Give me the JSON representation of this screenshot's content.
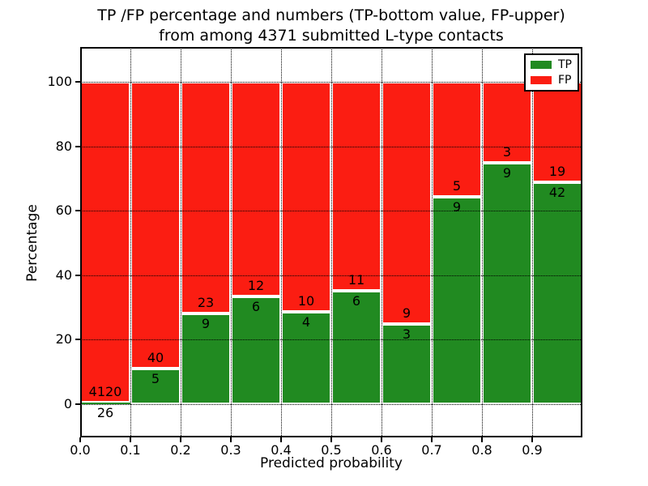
{
  "figure": {
    "title_line1": "TP /FP percentage and numbers (TP-bottom value, FP-upper)",
    "title_line2": "from among 4371 submitted L-type contacts",
    "xlabel": "Predicted probability",
    "ylabel": "Percentage"
  },
  "legend": {
    "items": [
      {
        "label": "TP",
        "color": "#218a21"
      },
      {
        "label": "FP",
        "color": "#fb1d12"
      }
    ],
    "position": "upper right"
  },
  "chart_data": {
    "type": "bar",
    "stacked": true,
    "normalized_to_percent": true,
    "title": "TP /FP percentage and numbers (TP-bottom value, FP-upper) from among 4371 submitted L-type contacts",
    "xlabel": "Predicted probability",
    "ylabel": "Percentage",
    "total_submitted": 4371,
    "bin_width": 0.1,
    "bin_starts": [
      0.0,
      0.1,
      0.2,
      0.3,
      0.4,
      0.5,
      0.6,
      0.7,
      0.8,
      0.9
    ],
    "series": [
      {
        "name": "TP",
        "color": "#218a21",
        "counts": [
          26,
          5,
          9,
          6,
          4,
          6,
          3,
          9,
          9,
          42
        ]
      },
      {
        "name": "FP",
        "color": "#fb1d12",
        "counts": [
          4120,
          40,
          23,
          12,
          10,
          11,
          9,
          5,
          3,
          19
        ]
      }
    ],
    "tp_percent_of_bin": [
      0.63,
      11.11,
      28.13,
      33.33,
      28.57,
      35.29,
      25.0,
      64.29,
      75.0,
      68.85
    ],
    "x_tick_labels": [
      "0.0",
      "0.1",
      "0.2",
      "0.3",
      "0.4",
      "0.5",
      "0.6",
      "0.7",
      "0.8",
      "0.9"
    ],
    "y_tick_labels": [
      "0",
      "20",
      "40",
      "60",
      "80",
      "100"
    ],
    "y_ticks": [
      0,
      20,
      40,
      60,
      80,
      100
    ],
    "xlim": [
      0.0,
      1.0
    ],
    "ylim": [
      -10.3,
      110.8
    ],
    "grid": "dotted, drawn above bars",
    "legend_position": "upper right"
  }
}
